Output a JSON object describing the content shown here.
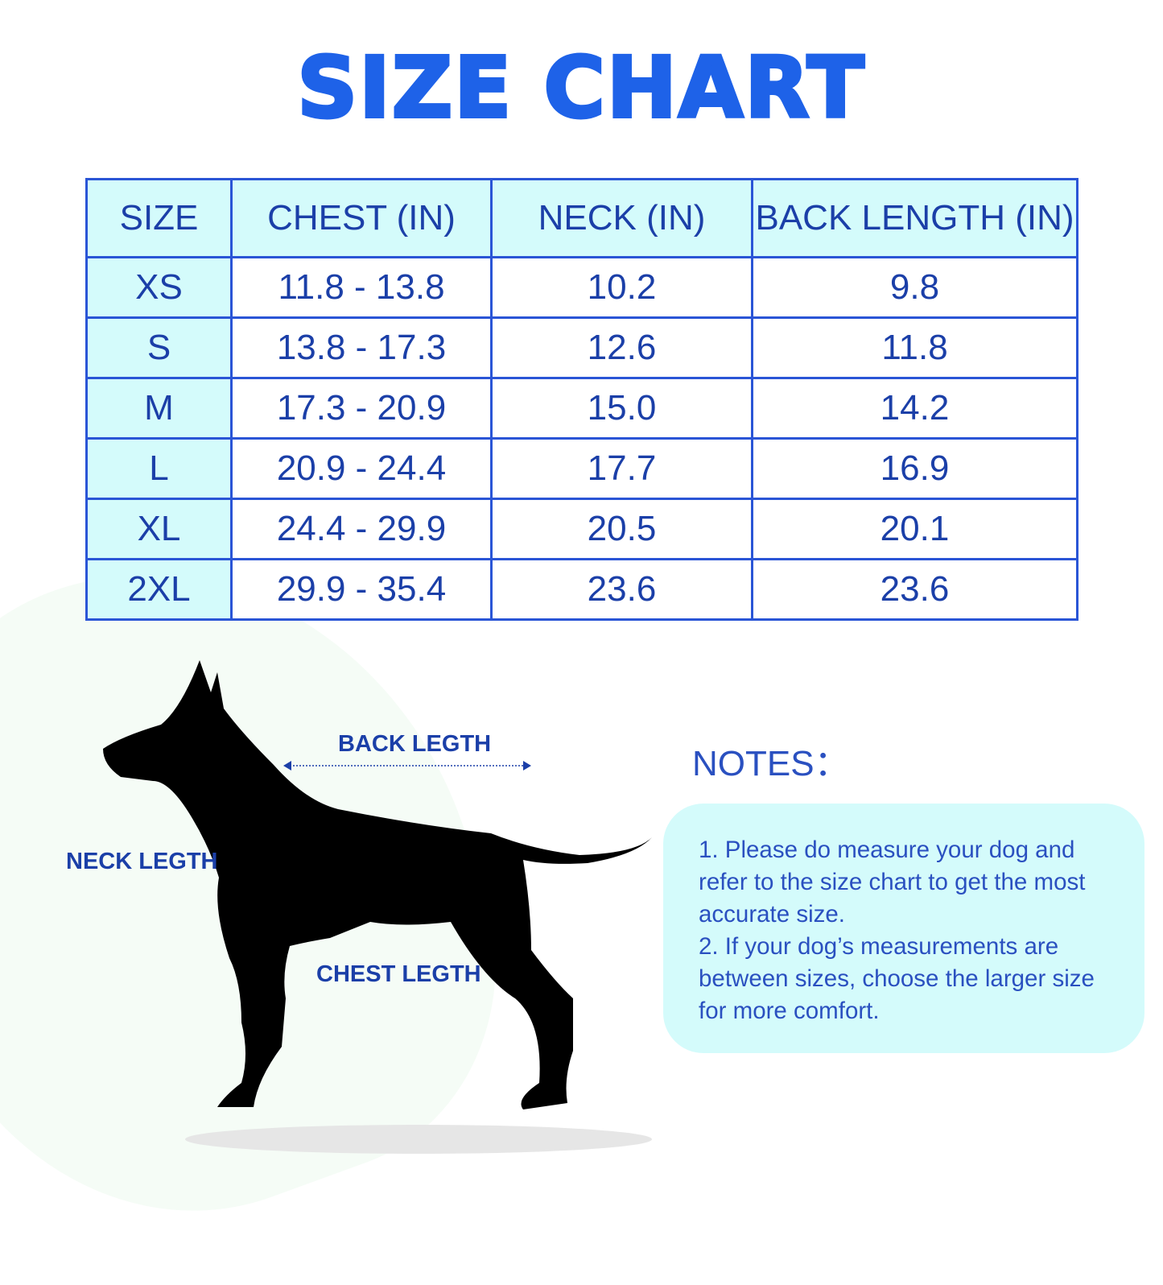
{
  "title": "SIZE CHART",
  "table": {
    "headers": [
      "SIZE",
      "CHEST (IN)",
      "NECK (IN)",
      "BACK LENGTH (IN)"
    ],
    "rows": [
      [
        "XS",
        "11.8 - 13.8",
        "10.2",
        "9.8"
      ],
      [
        "S",
        "13.8 - 17.3",
        "12.6",
        "11.8"
      ],
      [
        "M",
        "17.3 - 20.9",
        "15.0",
        "14.2"
      ],
      [
        "L",
        "20.9 - 24.4",
        "17.7",
        "16.9"
      ],
      [
        "XL",
        "24.4 - 29.9",
        "20.5",
        "20.1"
      ],
      [
        "2XL",
        "29.9 - 35.4",
        "23.6",
        "23.6"
      ]
    ]
  },
  "diagram": {
    "back_label": "BACK LEGTH",
    "neck_label": "NECK LEGTH",
    "chest_label": "CHEST LEGTH",
    "icon": "dog-silhouette"
  },
  "notes": {
    "title": "NOTES：",
    "items": [
      "1.  Please do measure your dog and refer to the size chart to get the most accurate size.",
      "2.  If your dog’s measurements are between sizes, choose the larger size for more comfort."
    ]
  },
  "colors": {
    "title": "#1e62e8",
    "border": "#2a55d6",
    "cell_fill": "#d4fbfb",
    "text": "#1b3fa8"
  }
}
